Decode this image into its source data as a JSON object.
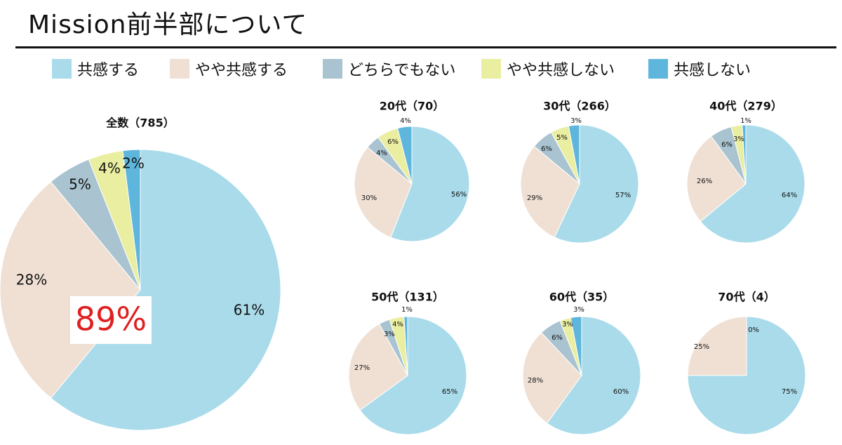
{
  "title": "Mission前半部について",
  "legend": [
    {
      "label": "共感する",
      "color": "#a9dbea"
    },
    {
      "label": "やや共感する",
      "color": "#f0e0d4"
    },
    {
      "label": "どちらでもない",
      "color": "#a9c3d0"
    },
    {
      "label": "やや共感しない",
      "color": "#eaeea0"
    },
    {
      "label": "共感しない",
      "color": "#5fb6dc"
    }
  ],
  "highlight": {
    "text": "89%",
    "color": "#e02020"
  },
  "chart_data": [
    {
      "type": "pie",
      "title": "全数（785）",
      "values": [
        61,
        28,
        5,
        4,
        2
      ],
      "labels": [
        "61%",
        "28%",
        "5%",
        "4%",
        "2%"
      ]
    },
    {
      "type": "pie",
      "title": "20代（70）",
      "values": [
        56,
        30,
        4,
        6,
        4
      ],
      "labels": [
        "56%",
        "30%",
        "4%",
        "6%",
        "4%"
      ]
    },
    {
      "type": "pie",
      "title": "30代（266）",
      "values": [
        57,
        29,
        6,
        5,
        3
      ],
      "labels": [
        "57%",
        "29%",
        "6%",
        "5%",
        "3%"
      ]
    },
    {
      "type": "pie",
      "title": "40代（279）",
      "values": [
        64,
        26,
        6,
        3,
        1
      ],
      "labels": [
        "64%",
        "26%",
        "6%",
        "3%",
        "1%"
      ]
    },
    {
      "type": "pie",
      "title": "50代（131）",
      "values": [
        65,
        27,
        3,
        4,
        1
      ],
      "labels": [
        "65%",
        "27%",
        "3%",
        "4%",
        "1%"
      ]
    },
    {
      "type": "pie",
      "title": "60代（35）",
      "values": [
        60,
        28,
        6,
        3,
        3
      ],
      "labels": [
        "60%",
        "28%",
        "6%",
        "3%",
        "3%"
      ]
    },
    {
      "type": "pie",
      "title": "70代（4）",
      "values": [
        75,
        25,
        0
      ],
      "labels": [
        "75%",
        "25%",
        "0%"
      ]
    }
  ]
}
